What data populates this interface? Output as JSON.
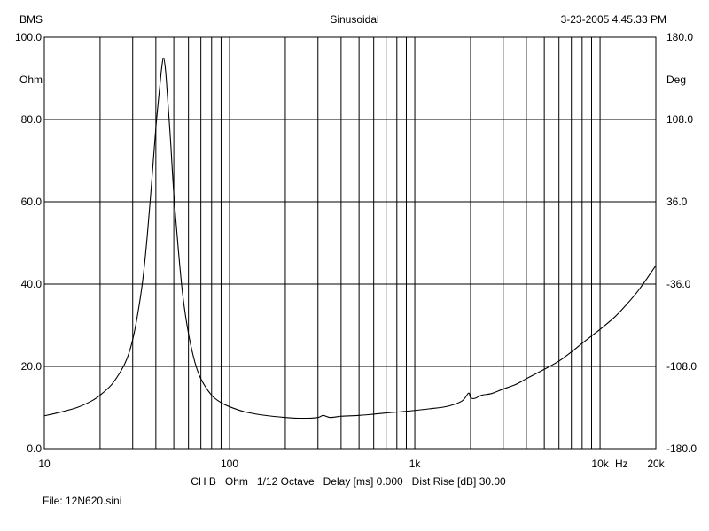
{
  "header": {
    "left": "BMS",
    "center": "Sinusoidal",
    "right": "3-23-2005 4.45.33 PM"
  },
  "footer": {
    "settings": "CH B   Ohm   1/12 Octave   Delay [ms] 0.000   Dist Rise [dB] 30.00",
    "file": "File: 12N620.sini"
  },
  "chart_data": {
    "type": "line",
    "title": "",
    "x_scale": "log",
    "xlim": [
      10,
      20000
    ],
    "grid": true,
    "x_ticks": [
      {
        "value": 10,
        "label": "10"
      },
      {
        "value": 100,
        "label": "100"
      },
      {
        "value": 1000,
        "label": "1k"
      },
      {
        "value": 10000,
        "label": "10k"
      },
      {
        "value": 20000,
        "label": "20k"
      }
    ],
    "x_unit_label": "Hz",
    "y_left": {
      "unit": "Ohm",
      "ylim": [
        0,
        100
      ],
      "ticks": [
        "0.0",
        "20.0",
        "40.0",
        "60.0",
        "80.0",
        "100.0"
      ]
    },
    "y_right": {
      "unit": "Deg",
      "ylim": [
        -180,
        180
      ],
      "ticks": [
        "-180.0",
        "-108.0",
        "-36.0",
        "36.0",
        "108.0",
        "180.0"
      ]
    },
    "series": [
      {
        "unit": "Ohm",
        "points": [
          [
            10,
            8.0
          ],
          [
            12,
            8.8
          ],
          [
            15,
            10.0
          ],
          [
            18,
            11.6
          ],
          [
            20,
            13.0
          ],
          [
            23,
            15.5
          ],
          [
            26,
            19.0
          ],
          [
            28,
            22.0
          ],
          [
            30,
            26.5
          ],
          [
            32,
            33.0
          ],
          [
            34,
            41.0
          ],
          [
            36,
            52.0
          ],
          [
            38,
            65.0
          ],
          [
            40,
            78.0
          ],
          [
            42,
            88.0
          ],
          [
            43,
            92.5
          ],
          [
            44,
            95.0
          ],
          [
            45,
            92.5
          ],
          [
            46,
            87.0
          ],
          [
            48,
            75.0
          ],
          [
            50,
            62.0
          ],
          [
            53,
            48.0
          ],
          [
            56,
            37.0
          ],
          [
            60,
            28.0
          ],
          [
            65,
            21.0
          ],
          [
            70,
            17.0
          ],
          [
            80,
            13.0
          ],
          [
            90,
            11.2
          ],
          [
            100,
            10.2
          ],
          [
            120,
            9.0
          ],
          [
            150,
            8.2
          ],
          [
            200,
            7.6
          ],
          [
            250,
            7.4
          ],
          [
            300,
            7.6
          ],
          [
            320,
            8.1
          ],
          [
            350,
            7.6
          ],
          [
            400,
            7.9
          ],
          [
            500,
            8.1
          ],
          [
            600,
            8.4
          ],
          [
            700,
            8.7
          ],
          [
            800,
            8.9
          ],
          [
            1000,
            9.3
          ],
          [
            1200,
            9.7
          ],
          [
            1500,
            10.3
          ],
          [
            1800,
            11.6
          ],
          [
            1950,
            13.5
          ],
          [
            2000,
            12.4
          ],
          [
            2100,
            12.2
          ],
          [
            2300,
            13.0
          ],
          [
            2600,
            13.4
          ],
          [
            3000,
            14.5
          ],
          [
            3500,
            15.6
          ],
          [
            4000,
            17.0
          ],
          [
            5000,
            19.3
          ],
          [
            6000,
            21.3
          ],
          [
            7000,
            23.5
          ],
          [
            8000,
            25.6
          ],
          [
            9000,
            27.4
          ],
          [
            10000,
            29.0
          ],
          [
            12000,
            32.0
          ],
          [
            14000,
            35.2
          ],
          [
            16000,
            38.3
          ],
          [
            18000,
            41.5
          ],
          [
            20000,
            44.5
          ]
        ]
      }
    ]
  }
}
